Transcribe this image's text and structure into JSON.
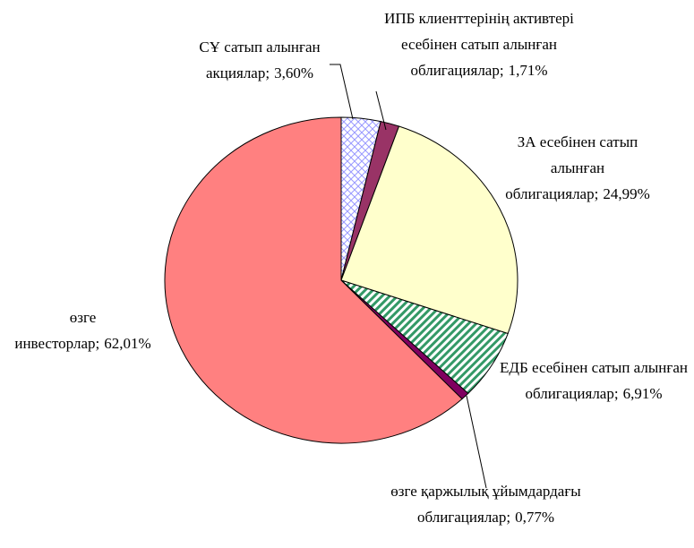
{
  "chart_data": {
    "type": "pie",
    "categories": [
      "СҰ сатып алынған акциялар;",
      "ИПБ клиенттерінің активтері есебінен сатып алынған облигациялар;",
      "ЗА есебінен сатып алынған облигациялар;",
      "ЕДБ есебінен сатып алынған облигациялар;",
      "өзге қаржылық ұйымдардағы облигациялар;",
      "өзге инвесторлар;"
    ],
    "values": [
      3.6,
      1.71,
      24.99,
      6.91,
      0.77,
      62.01
    ],
    "value_labels": [
      "3,60%",
      "1,71%",
      "24,99%",
      "6,91%",
      "0,77%",
      "62,01%"
    ],
    "colors": [
      "#ffffff",
      "#993366",
      "#ffffcc",
      "#ffffff",
      "#800060",
      "#ff8080"
    ],
    "hatches": [
      "cross",
      null,
      null,
      "diagonal",
      null,
      null
    ],
    "hatch_colors": [
      "#9999ff",
      null,
      null,
      "#339966",
      null,
      null
    ]
  }
}
